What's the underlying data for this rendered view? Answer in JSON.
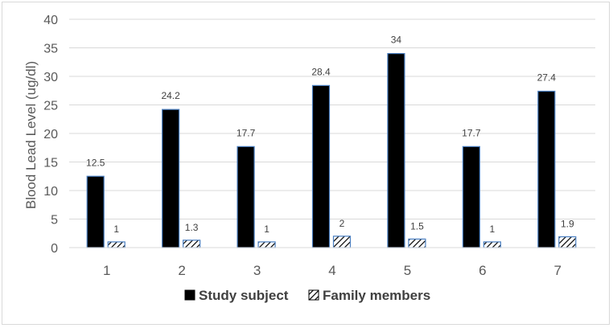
{
  "chart_data": {
    "type": "bar",
    "title": "",
    "xlabel": "",
    "ylabel": "Blood Lead Level (ug/dl)",
    "categories": [
      "1",
      "2",
      "3",
      "4",
      "5",
      "6",
      "7"
    ],
    "series": [
      {
        "name": "Study subject",
        "values": [
          12.5,
          24.2,
          17.7,
          28.4,
          34,
          17.7,
          27.4
        ],
        "labels": [
          "12.5",
          "24.2",
          "17.7",
          "28.4",
          "34",
          "17.7",
          "27.4"
        ],
        "fill": "#000000",
        "stroke": "#4a7fc1",
        "pattern": "solid"
      },
      {
        "name": "Family members",
        "values": [
          1,
          1.3,
          1,
          2,
          1.5,
          1,
          1.9
        ],
        "labels": [
          "1",
          "1.3",
          "1",
          "2",
          "1.5",
          "1",
          "1.9"
        ],
        "fill": "#ffffff",
        "stroke": "#4a7fc1",
        "pattern": "diagonal-hatch"
      }
    ],
    "ylim": [
      0,
      40
    ],
    "yticks": [
      "0",
      "5",
      "10",
      "15",
      "20",
      "25",
      "30",
      "35",
      "40"
    ],
    "grid": true,
    "gridColor": "#d9d9d9",
    "legend_position": "bottom"
  }
}
